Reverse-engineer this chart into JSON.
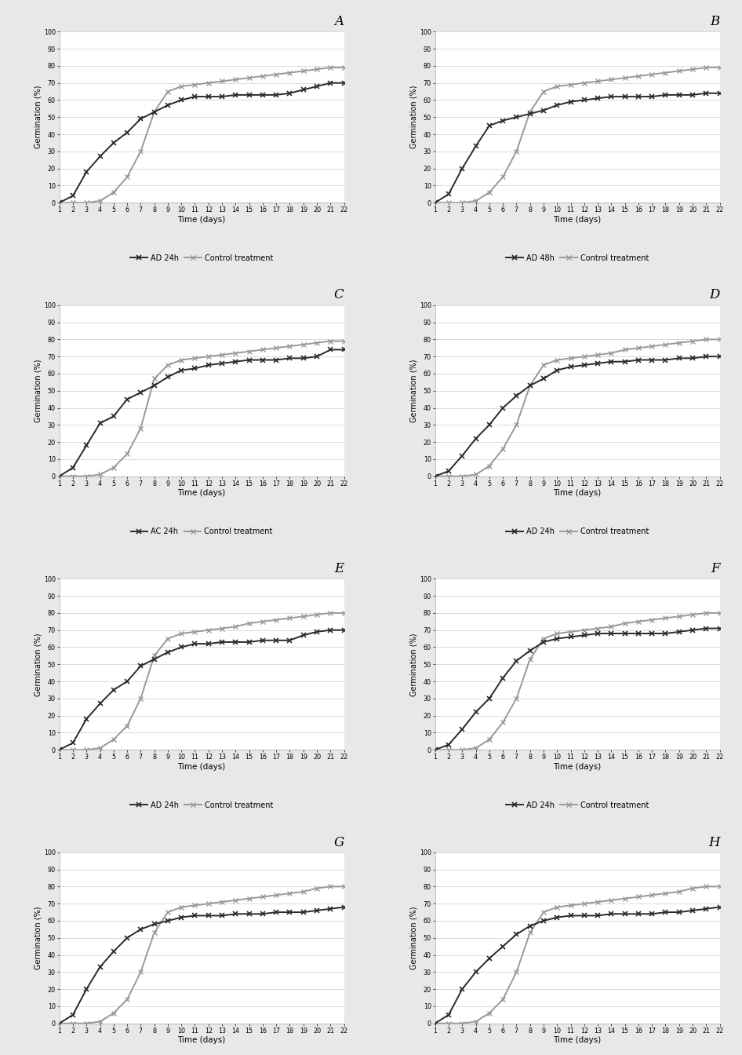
{
  "days": [
    1,
    2,
    3,
    4,
    5,
    6,
    7,
    8,
    9,
    10,
    11,
    12,
    13,
    14,
    15,
    16,
    17,
    18,
    19,
    20,
    21,
    22
  ],
  "panels": [
    {
      "label": "A",
      "treatment_label": "AD 24h",
      "treatment": [
        0,
        4,
        18,
        27,
        35,
        41,
        49,
        53,
        57,
        60,
        62,
        62,
        62,
        63,
        63,
        63,
        63,
        64,
        66,
        68,
        70,
        70
      ],
      "control": [
        0,
        0,
        0,
        1,
        6,
        15,
        30,
        53,
        65,
        68,
        69,
        70,
        71,
        72,
        73,
        74,
        75,
        76,
        77,
        78,
        79,
        79
      ]
    },
    {
      "label": "B",
      "treatment_label": "AD 48h",
      "treatment": [
        0,
        5,
        20,
        33,
        45,
        48,
        50,
        52,
        54,
        57,
        59,
        60,
        61,
        62,
        62,
        62,
        62,
        63,
        63,
        63,
        64,
        64
      ],
      "control": [
        0,
        0,
        0,
        1,
        6,
        15,
        30,
        53,
        65,
        68,
        69,
        70,
        71,
        72,
        73,
        74,
        75,
        76,
        77,
        78,
        79,
        79
      ]
    },
    {
      "label": "C",
      "treatment_label": "AC 24h",
      "treatment": [
        0,
        5,
        18,
        31,
        35,
        45,
        49,
        53,
        58,
        62,
        63,
        65,
        66,
        67,
        68,
        68,
        68,
        69,
        69,
        70,
        74,
        74
      ],
      "control": [
        0,
        0,
        0,
        1,
        5,
        13,
        28,
        57,
        65,
        68,
        69,
        70,
        71,
        72,
        73,
        74,
        75,
        76,
        77,
        78,
        79,
        79
      ]
    },
    {
      "label": "D",
      "treatment_label": "AD 24h",
      "treatment": [
        0,
        3,
        12,
        22,
        30,
        40,
        47,
        53,
        57,
        62,
        64,
        65,
        66,
        67,
        67,
        68,
        68,
        68,
        69,
        69,
        70,
        70
      ],
      "control": [
        0,
        0,
        0,
        1,
        6,
        16,
        30,
        53,
        65,
        68,
        69,
        70,
        71,
        72,
        74,
        75,
        76,
        77,
        78,
        79,
        80,
        80
      ]
    },
    {
      "label": "E",
      "treatment_label": "AD 24h",
      "treatment": [
        0,
        4,
        18,
        27,
        35,
        40,
        49,
        53,
        57,
        60,
        62,
        62,
        63,
        63,
        63,
        64,
        64,
        64,
        67,
        69,
        70,
        70
      ],
      "control": [
        0,
        0,
        0,
        1,
        6,
        14,
        30,
        55,
        65,
        68,
        69,
        70,
        71,
        72,
        74,
        75,
        76,
        77,
        78,
        79,
        80,
        80
      ]
    },
    {
      "label": "F",
      "treatment_label": "AD 24h",
      "treatment": [
        0,
        3,
        12,
        22,
        30,
        42,
        52,
        58,
        63,
        65,
        66,
        67,
        68,
        68,
        68,
        68,
        68,
        68,
        69,
        70,
        71,
        71
      ],
      "control": [
        0,
        0,
        0,
        1,
        6,
        16,
        30,
        53,
        65,
        68,
        69,
        70,
        71,
        72,
        74,
        75,
        76,
        77,
        78,
        79,
        80,
        80
      ]
    },
    {
      "label": "G",
      "treatment_label": "AD 24h",
      "treatment": [
        0,
        5,
        20,
        33,
        42,
        50,
        55,
        58,
        60,
        62,
        63,
        63,
        63,
        64,
        64,
        64,
        65,
        65,
        65,
        66,
        67,
        68
      ],
      "control": [
        0,
        0,
        0,
        1,
        6,
        14,
        30,
        53,
        65,
        68,
        69,
        70,
        71,
        72,
        73,
        74,
        75,
        76,
        77,
        79,
        80,
        80
      ]
    },
    {
      "label": "H",
      "treatment_label": "AD 24h",
      "treatment": [
        0,
        5,
        20,
        30,
        38,
        45,
        52,
        57,
        60,
        62,
        63,
        63,
        63,
        64,
        64,
        64,
        64,
        65,
        65,
        66,
        67,
        68
      ],
      "control": [
        0,
        0,
        0,
        1,
        6,
        14,
        30,
        53,
        65,
        68,
        69,
        70,
        71,
        72,
        73,
        74,
        75,
        76,
        77,
        79,
        80,
        80
      ]
    }
  ],
  "treatment_color": "#2a2a2a",
  "control_color": "#999999",
  "ylabel": "Germination (%)",
  "xlabel": "Time (days)",
  "ylim": [
    0,
    100
  ],
  "yticks": [
    0,
    10,
    20,
    30,
    40,
    50,
    60,
    70,
    80,
    90,
    100
  ],
  "xlim": [
    1,
    22
  ],
  "xticks": [
    1,
    2,
    3,
    4,
    5,
    6,
    7,
    8,
    9,
    10,
    11,
    12,
    13,
    14,
    15,
    16,
    17,
    18,
    19,
    20,
    21,
    22
  ],
  "background_color": "#ffffff",
  "fig_facecolor": "#e8e8e8",
  "grid_color": "#cccccc",
  "line_width": 1.4,
  "marker": "x",
  "marker_size": 4.5,
  "control_legend_label": "Control treatment"
}
